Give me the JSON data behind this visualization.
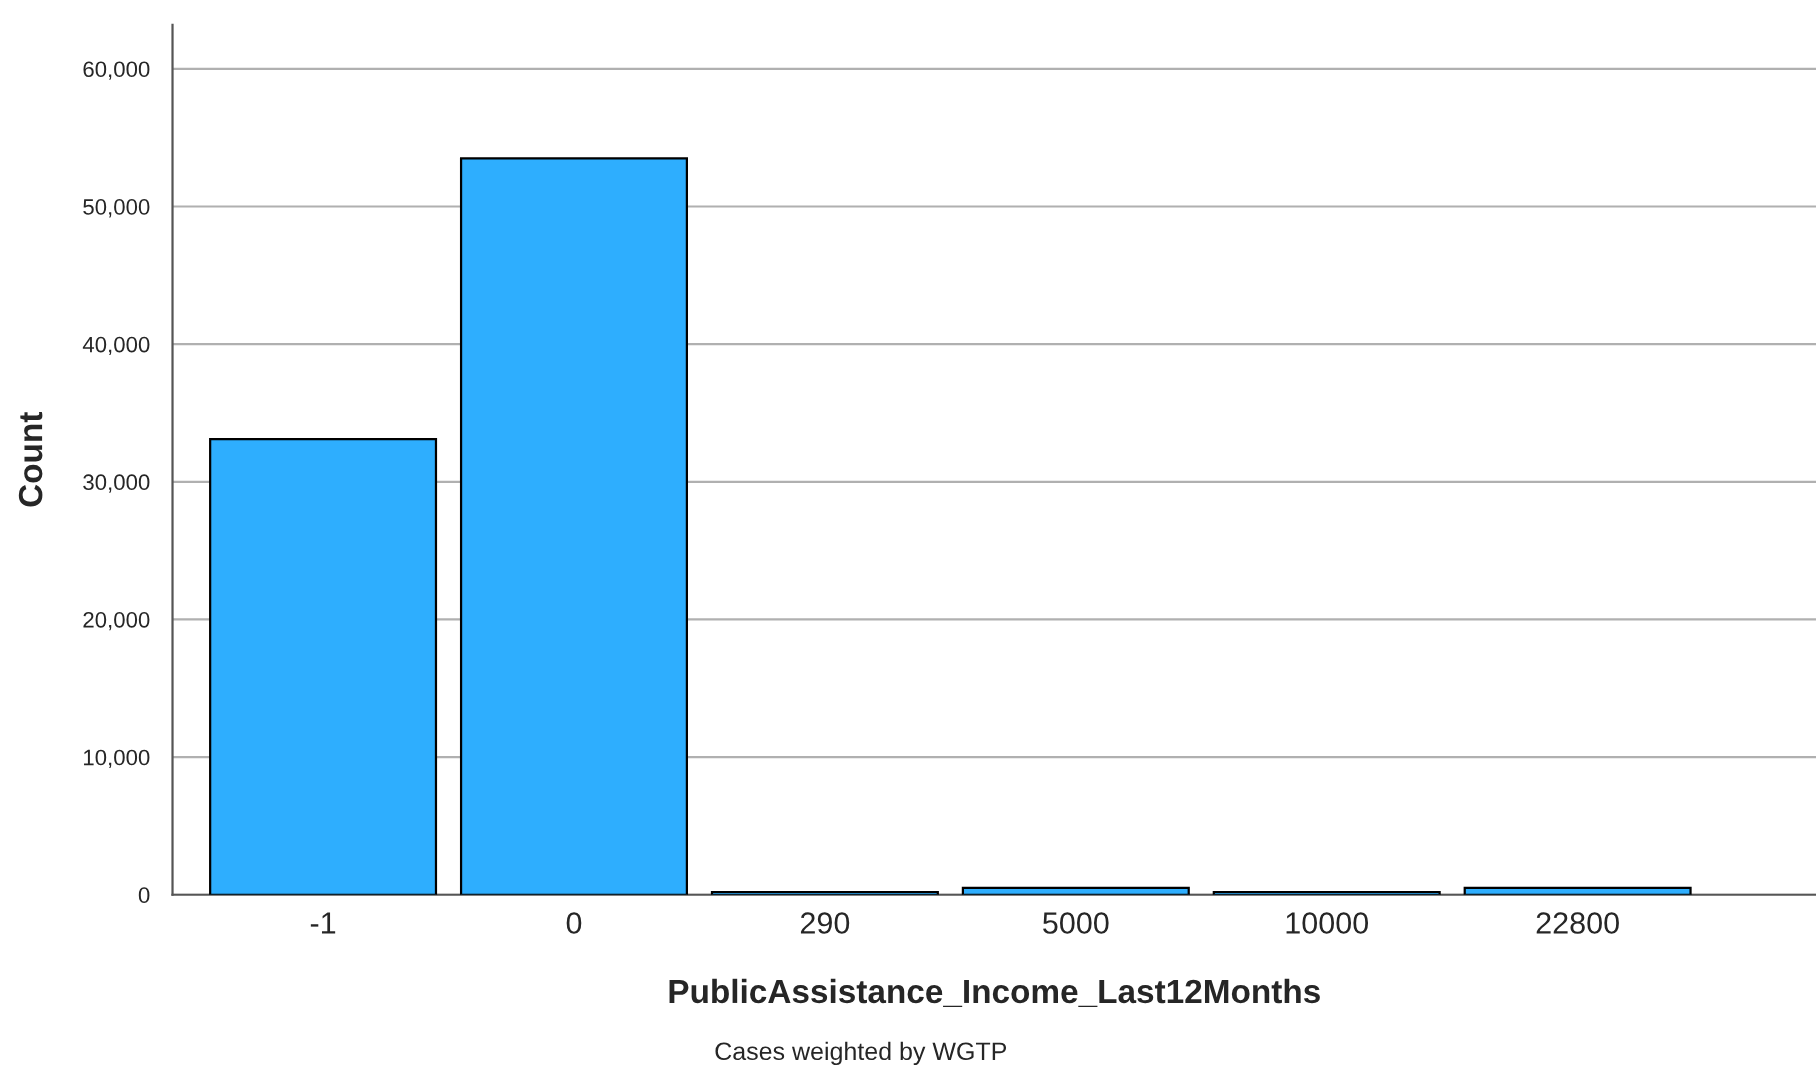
{
  "chart_data": {
    "type": "bar",
    "xlabel": "PublicAssistance_Income_Last12Months",
    "ylabel": "Count",
    "categories": [
      "-1",
      "0",
      "290",
      "5000",
      "10000",
      "22800"
    ],
    "values": [
      33100,
      53500,
      200,
      500,
      200,
      500
    ],
    "color": "#2eaefe",
    "ylim": [
      0,
      63200
    ],
    "yticks": [
      {
        "value": 0,
        "label": "0"
      },
      {
        "value": 10000,
        "label": "10,000"
      },
      {
        "value": 20000,
        "label": "20,000"
      },
      {
        "value": 30000,
        "label": "30,000"
      },
      {
        "value": 40000,
        "label": "40,000"
      },
      {
        "value": 50000,
        "label": "50,000"
      },
      {
        "value": 60000,
        "label": "60,000"
      }
    ],
    "grid": "y",
    "annotations": [
      "Cases weighted by WGTP"
    ]
  }
}
